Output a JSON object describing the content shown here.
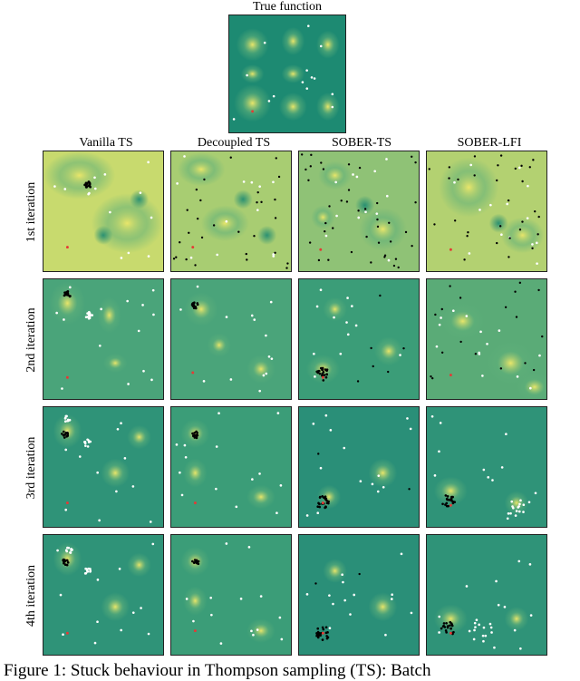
{
  "figure": {
    "top_title": "True function",
    "columns": [
      "Vanilla TS",
      "Decoupled TS",
      "SOBER-TS",
      "SOBER-LFI"
    ],
    "rows": [
      "1st iteration",
      "2nd iteration",
      "3rd iteration",
      "4th iteration"
    ],
    "caption": "Figure 1:  Stuck behaviour in Thompson sampling (TS): Batch"
  },
  "colors": {
    "low": "#1d8a72",
    "mid": "#5fb07a",
    "high": "#e9e66a",
    "sample_point": "#ffffff",
    "batch_point": "#000000",
    "optimum_marker": "#e53935"
  }
}
